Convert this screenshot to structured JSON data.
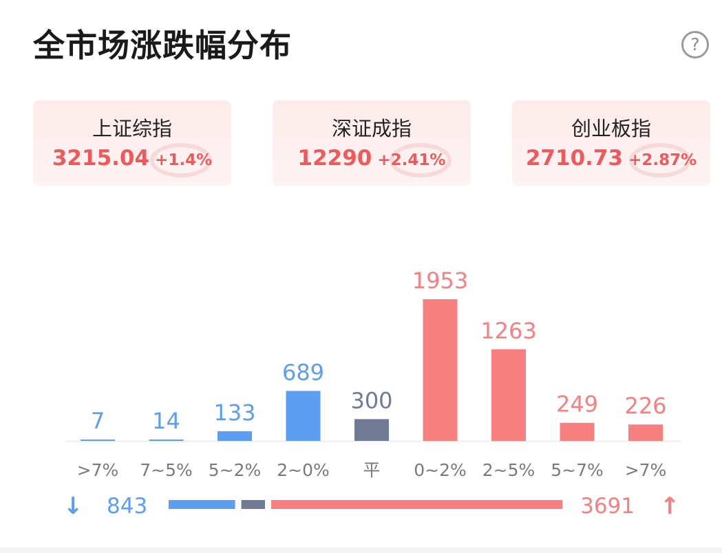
{
  "header": {
    "title": "全市场涨跌幅分布",
    "help_icon_text": "?"
  },
  "indices": [
    {
      "name": "上证综指",
      "value": "3215.04",
      "change": "+1.4%"
    },
    {
      "name": "深证成指",
      "value": "12290",
      "change": "+2.41%"
    },
    {
      "name": "创业板指",
      "value": "2710.73",
      "change": "+2.87%"
    }
  ],
  "colors": {
    "down": "#5b9ef2",
    "flat": "#6f7a95",
    "up": "#f77f80",
    "axis_label": "#7a7a7a"
  },
  "chart_data": {
    "type": "bar",
    "title": "全市场涨跌幅分布",
    "xlabel": "",
    "ylabel": "",
    "categories": [
      ">7%",
      "7~5%",
      "5~2%",
      "2~0%",
      "平",
      "0~2%",
      "2~5%",
      "5~7%",
      ">7%"
    ],
    "values": [
      7,
      14,
      133,
      689,
      300,
      1953,
      1263,
      249,
      226
    ],
    "groups": [
      "down",
      "down",
      "down",
      "down",
      "flat",
      "up",
      "up",
      "up",
      "up"
    ],
    "ylim": [
      0,
      1953
    ],
    "grid": false,
    "legend": "none"
  },
  "summary": {
    "down_count": "843",
    "flat_count_shown": "",
    "up_count": "3691",
    "down_arrow": "↓",
    "up_arrow": "↑"
  }
}
